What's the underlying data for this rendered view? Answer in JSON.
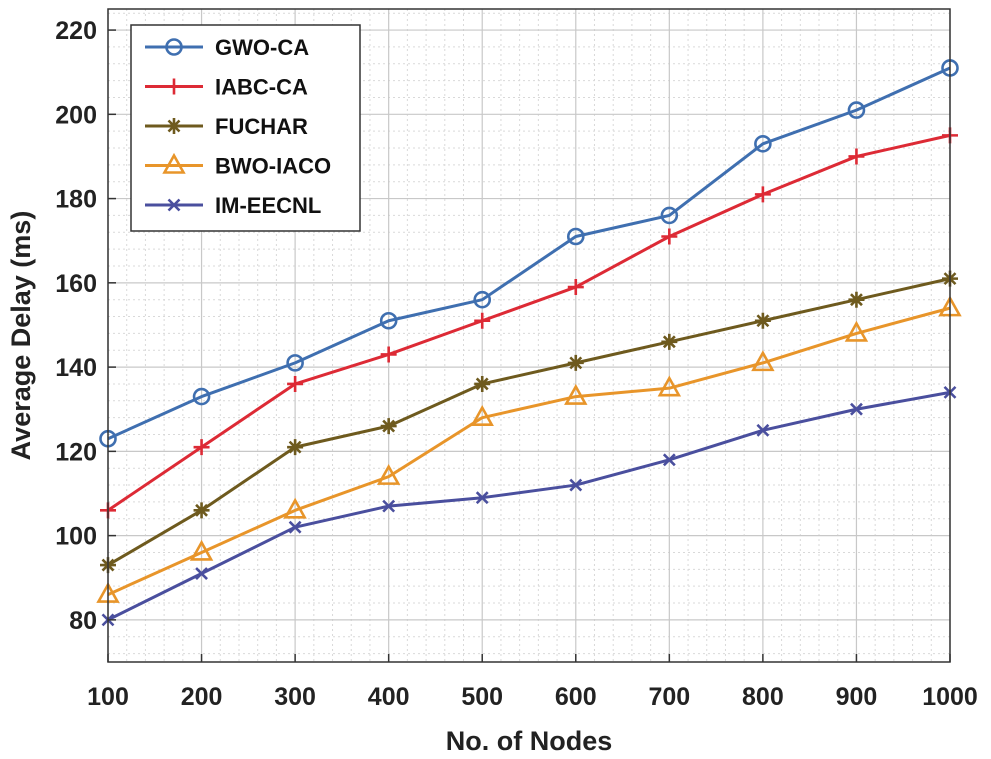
{
  "chart_data": {
    "type": "line",
    "title": "",
    "xlabel": "No. of Nodes",
    "ylabel": "Average Delay (ms)",
    "x": [
      100,
      200,
      300,
      400,
      500,
      600,
      700,
      800,
      900,
      1000
    ],
    "xlim": [
      100,
      1000
    ],
    "ylim": [
      70,
      225
    ],
    "yticks": [
      80,
      100,
      120,
      140,
      160,
      180,
      200,
      220
    ],
    "xticks": [
      100,
      200,
      300,
      400,
      500,
      600,
      700,
      800,
      900,
      1000
    ],
    "grid": true,
    "legend_position": "top-left",
    "series": [
      {
        "name": "GWO-CA",
        "color": "#3f6fb0",
        "marker": "circle",
        "values": [
          123,
          133,
          141,
          151,
          156,
          171,
          176,
          193,
          201,
          211
        ]
      },
      {
        "name": "IABC-CA",
        "color": "#dd2a35",
        "marker": "plus",
        "values": [
          106,
          121,
          136,
          143,
          151,
          159,
          171,
          181,
          190,
          195
        ]
      },
      {
        "name": "FUCHAR",
        "color": "#6e5a1e",
        "marker": "asterisk",
        "values": [
          93,
          106,
          121,
          126,
          136,
          141,
          146,
          151,
          156,
          161
        ]
      },
      {
        "name": "BWO-IACO",
        "color": "#e8952a",
        "marker": "triangle",
        "values": [
          86,
          96,
          106,
          114,
          128,
          133,
          135,
          141,
          148,
          154
        ]
      },
      {
        "name": "IM-EECNL",
        "color": "#4a4f9e",
        "marker": "x",
        "values": [
          80,
          91,
          102,
          107,
          109,
          112,
          118,
          125,
          130,
          134
        ]
      }
    ]
  }
}
